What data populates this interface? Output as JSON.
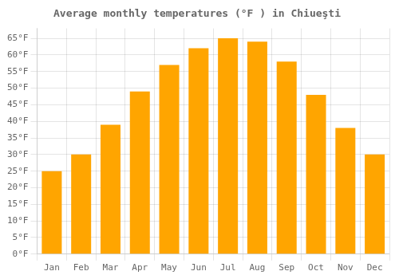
{
  "chart_data": {
    "type": "bar",
    "title": "Average monthly temperatures (°F ) in Chiueşti",
    "categories": [
      "Jan",
      "Feb",
      "Mar",
      "Apr",
      "May",
      "Jun",
      "Jul",
      "Aug",
      "Sep",
      "Oct",
      "Nov",
      "Dec"
    ],
    "values": [
      25,
      30,
      39,
      49,
      57,
      62,
      65,
      64,
      58,
      48,
      38,
      30
    ],
    "color": "#FFA500",
    "ylim": [
      0,
      68
    ],
    "yticks": [
      {
        "value": 0,
        "label": "0°F"
      },
      {
        "value": 5,
        "label": "5°F"
      },
      {
        "value": 10,
        "label": "10°F"
      },
      {
        "value": 15,
        "label": "15°F"
      },
      {
        "value": 20,
        "label": "20°F"
      },
      {
        "value": 25,
        "label": "25°F"
      },
      {
        "value": 30,
        "label": "30°F"
      },
      {
        "value": 35,
        "label": "35°F"
      },
      {
        "value": 40,
        "label": "40°F"
      },
      {
        "value": 45,
        "label": "45°F"
      },
      {
        "value": 50,
        "label": "50°F"
      },
      {
        "value": 55,
        "label": "55°F"
      },
      {
        "value": 60,
        "label": "60°F"
      },
      {
        "value": 65,
        "label": "65°F"
      }
    ],
    "grid": true
  }
}
